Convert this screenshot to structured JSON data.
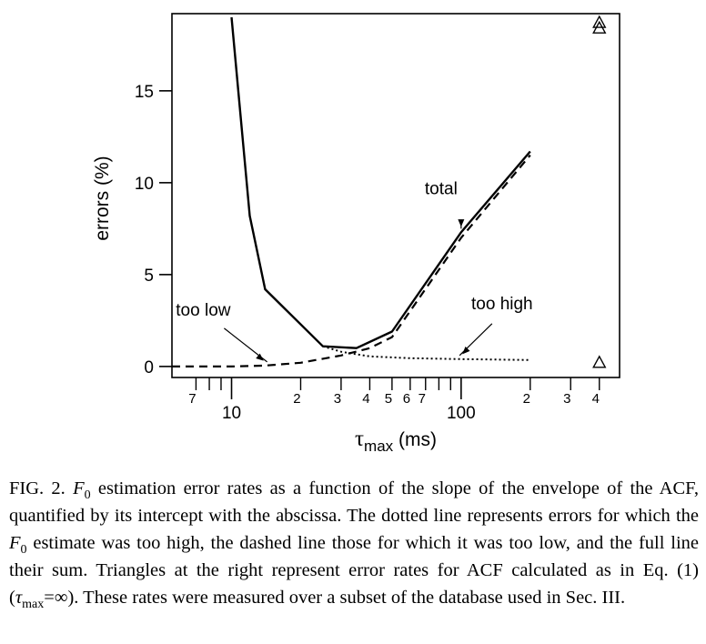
{
  "chart_data": {
    "type": "line",
    "x_scale": "log",
    "xlabel_main": "τ",
    "xlabel_sub": "max",
    "xlabel_unit": " (ms)",
    "ylabel": "errors (%)",
    "xlim": [
      5.5,
      490
    ],
    "ylim": [
      -0.6,
      19.2
    ],
    "y_ticks": [
      0,
      5,
      10,
      15
    ],
    "x_major_ticks": [
      10,
      100
    ],
    "x_major_labels": [
      "10",
      "100"
    ],
    "x_minor_ticks": [
      7,
      8,
      9,
      20,
      30,
      40,
      50,
      60,
      70,
      80,
      90,
      200,
      300,
      400
    ],
    "x_minor_labels": [
      {
        "x": 7,
        "label": "7"
      },
      {
        "x": 20,
        "label": "2"
      },
      {
        "x": 30,
        "label": "3"
      },
      {
        "x": 40,
        "label": "4"
      },
      {
        "x": 50,
        "label": "5"
      },
      {
        "x": 60,
        "label": "6"
      },
      {
        "x": 70,
        "label": "7"
      },
      {
        "x": 200,
        "label": "2"
      },
      {
        "x": 300,
        "label": "3"
      },
      {
        "x": 400,
        "label": "4"
      }
    ],
    "grid": false,
    "series": [
      {
        "name": "total",
        "style": "solid",
        "x": [
          10,
          12,
          14,
          25,
          35,
          50,
          100,
          200
        ],
        "y": [
          19.0,
          8.2,
          4.2,
          1.1,
          1.0,
          1.9,
          7.3,
          11.7
        ]
      },
      {
        "name": "too low",
        "style": "dashed",
        "x": [
          5.5,
          10,
          14,
          20,
          30,
          40,
          50,
          100,
          200
        ],
        "y": [
          0.0,
          0.0,
          0.05,
          0.2,
          0.6,
          1.0,
          1.6,
          7.0,
          11.5
        ]
      },
      {
        "name": "too high",
        "style": "dotted",
        "x": [
          25,
          30,
          40,
          60,
          100,
          200
        ],
        "y": [
          1.1,
          0.8,
          0.55,
          0.45,
          0.4,
          0.35
        ]
      },
      {
        "name": "τmax = ∞",
        "style": "triangle-markers",
        "x": [
          400,
          400,
          400
        ],
        "y": [
          18.7,
          18.4,
          0.2
        ]
      }
    ],
    "annotations": [
      {
        "text": "total",
        "target_x": 100,
        "target_y": 7.3
      },
      {
        "text": "too low",
        "target_x": 14,
        "target_y": 0.05
      },
      {
        "text": "too high",
        "target_x": 100,
        "target_y": 0.4
      }
    ]
  },
  "caption": {
    "fig_label": "FIG. 2.",
    "f0": "F",
    "f0_sub": "0",
    "part1": " estimation error rates as a function of the slope of the envelope of the ACF, quantified by its intercept with the abscissa. The dotted line represents errors for which the ",
    "part2": " estimate was too high, the dashed line those for which it was too low, and the full line their sum. Triangles at the right represent error rates for ACF calculated as in Eq. (1) (",
    "tau": "τ",
    "tau_sub": "max",
    "eq_inf": "=∞",
    "part3": "). These rates were measured over a subset of the database used in Sec. III."
  }
}
